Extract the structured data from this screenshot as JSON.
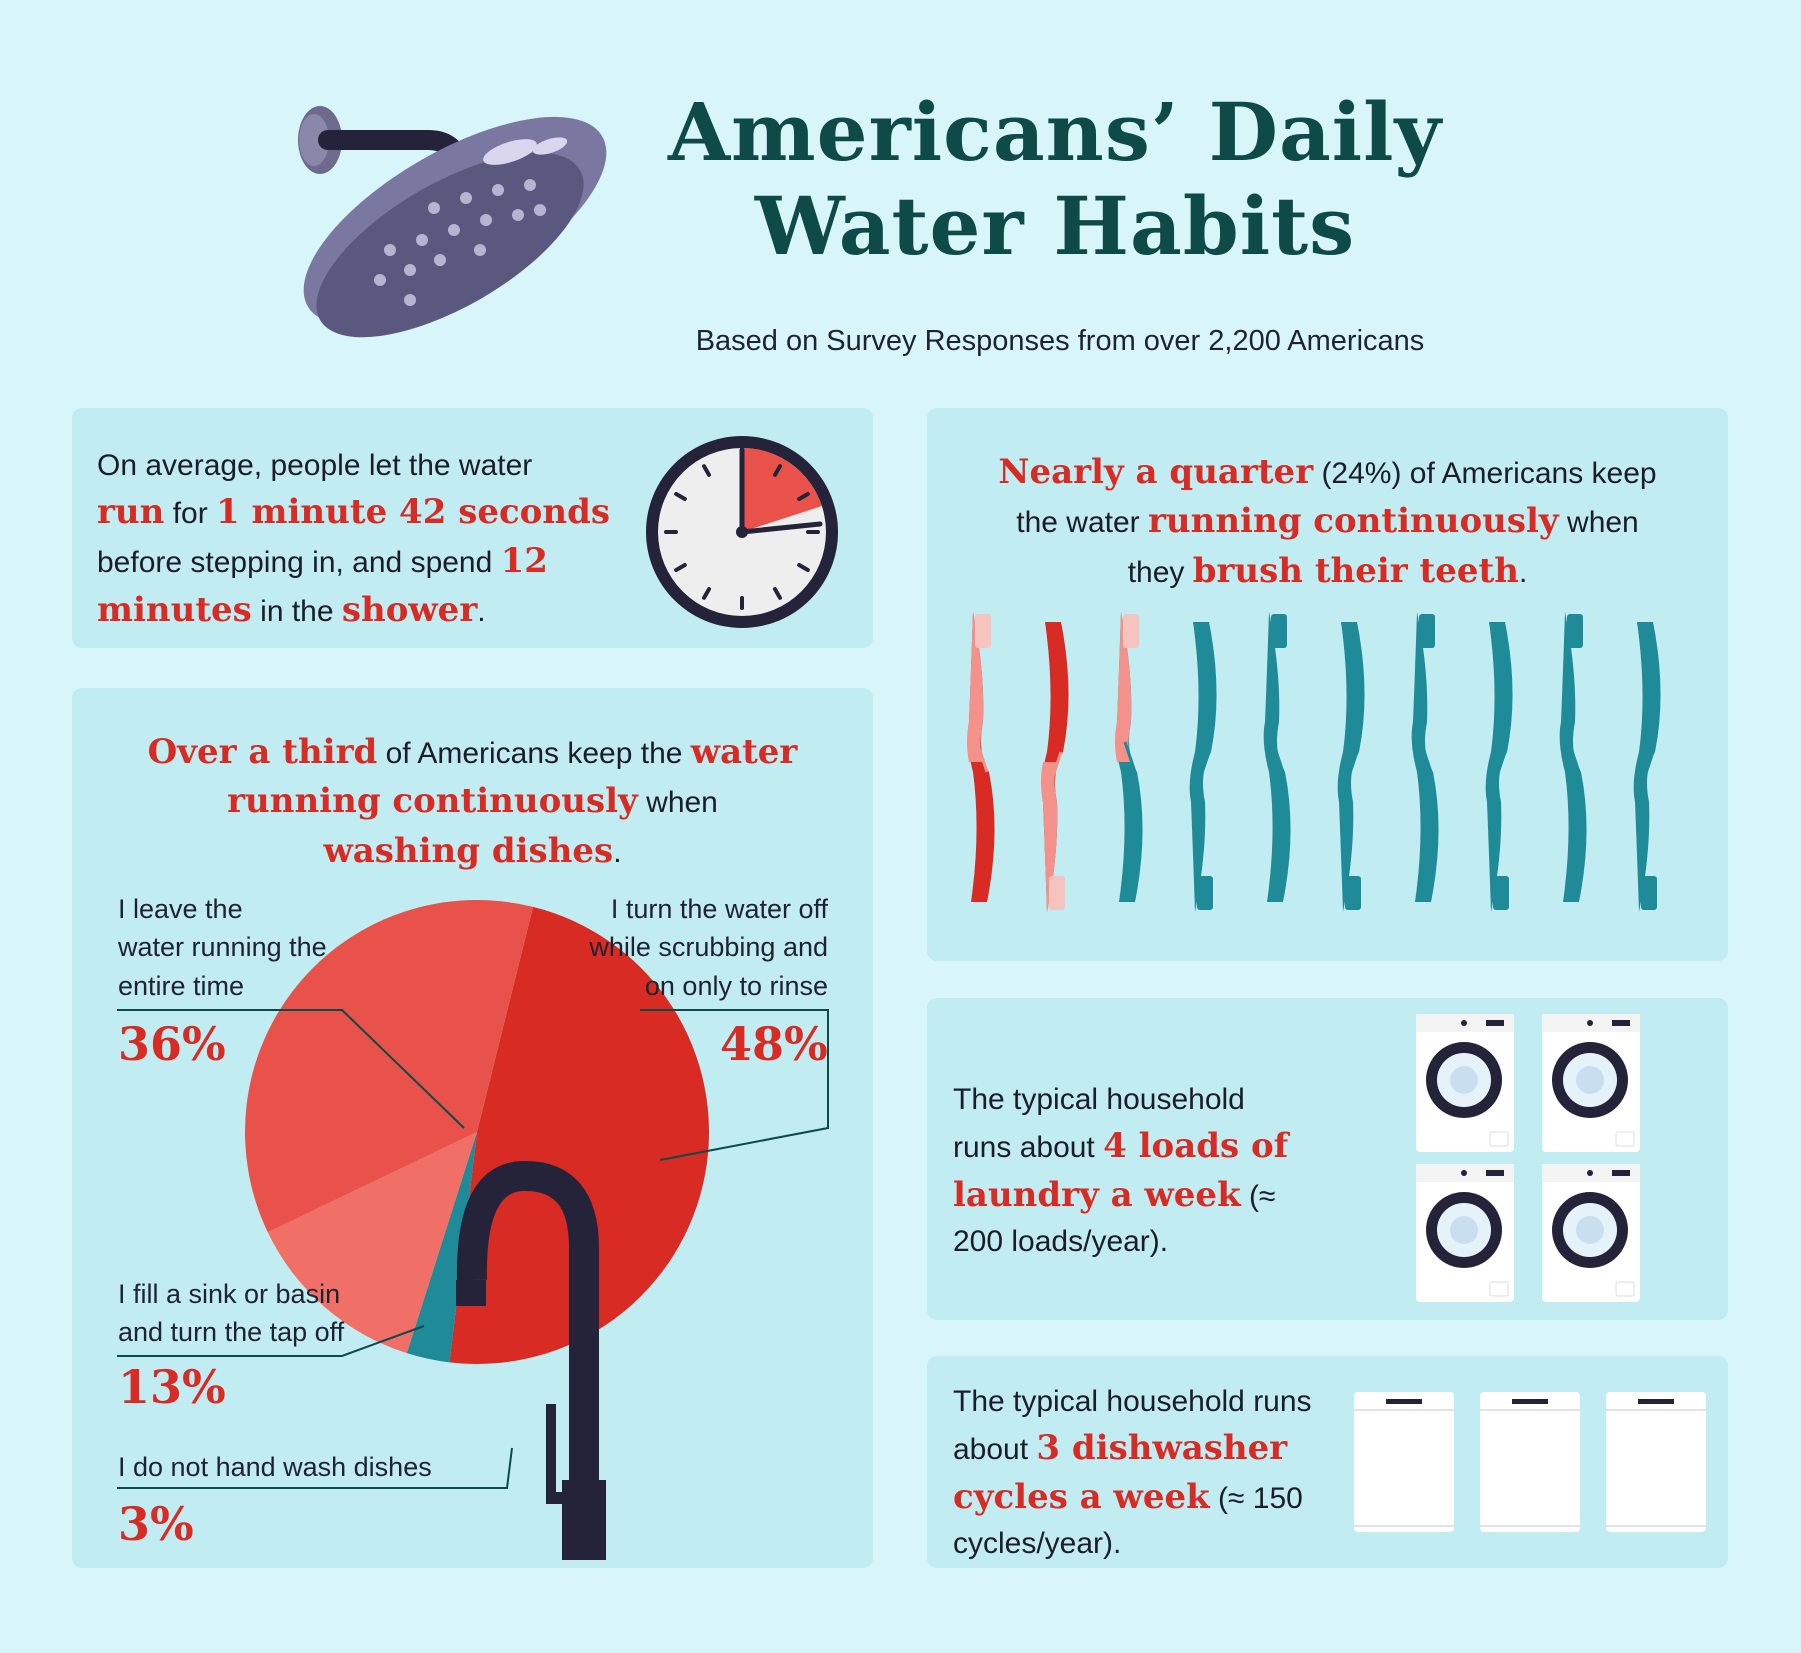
{
  "header": {
    "title_line1": "Americans’ Daily",
    "title_line2": "Water Habits",
    "subtitle": "Based on Survey Responses from over 2,200 Americans"
  },
  "colors": {
    "background": "#d8f6fa",
    "panel": "#c0ecf2",
    "title": "#0d4a48",
    "highlight": "#d72b23",
    "teal": "#1f8a98",
    "pink": "#f4918a"
  },
  "icons": [
    "shower-head-icon",
    "clock-icon",
    "toothbrush-icon",
    "washing-machine-icon",
    "dishwasher-icon",
    "faucet-icon"
  ],
  "shower": {
    "t1": "On average, people let the water",
    "t2": "run",
    "t3": " for ",
    "t4": "1 minute 42 seconds",
    "t5": "before stepping in, and spend ",
    "t6": "12",
    "t7": "minutes",
    "t8": " in the ",
    "t9": "shower",
    "t10": "."
  },
  "clock": {
    "highlight_minutes": 12
  },
  "teeth": {
    "t1": "Nearly a quarter",
    "t2": " (24%) of Americans keep",
    "t3": "the water ",
    "t4": "running continuously",
    "t5": " when",
    "t6": "they ",
    "t7": "brush their teeth",
    "t8": ".",
    "total_brushes": 10,
    "highlighted_brushes": 2.4
  },
  "dishes": {
    "h1": "Over a third",
    "h2": " of Americans keep the ",
    "h3": "water",
    "h4": "running continuously",
    "h5": " when",
    "h6": "washing dishes",
    "h7": ".",
    "labels": {
      "running": [
        "I leave the",
        "water running the",
        "entire time"
      ],
      "rinse": [
        "I turn the water off",
        "while scrubbing and",
        "on only to rinse"
      ],
      "basin": [
        "I fill a sink or basin",
        "and turn the tap off"
      ],
      "none": [
        "I do not hand wash dishes"
      ]
    },
    "percents": {
      "running": "36%",
      "rinse": "48%",
      "basin": "13%",
      "none": "3%"
    }
  },
  "chart_data": {
    "type": "pie",
    "title": "",
    "categories": [
      "I leave the water running the entire time",
      "I turn the water off while scrubbing and on only to rinse",
      "I fill a sink or basin and turn the tap off",
      "I do not hand wash dishes"
    ],
    "values": [
      36,
      48,
      13,
      3
    ],
    "colors": [
      "#e8524a",
      "#d72b23",
      "#f07067",
      "#1f8a98"
    ]
  },
  "laundry": {
    "t1": "The typical household",
    "t2": "runs about ",
    "t3": "4 loads of",
    "t4": "laundry a week",
    "t5": " (≈",
    "t6": "200 loads/year).",
    "machines": 4
  },
  "dishwasher": {
    "t1": "The typical household runs",
    "t2": "about ",
    "t3": "3 dishwasher",
    "t4": "cycles a week",
    "t5": " (≈ 150",
    "t6": "cycles/year).",
    "machines": 3
  }
}
